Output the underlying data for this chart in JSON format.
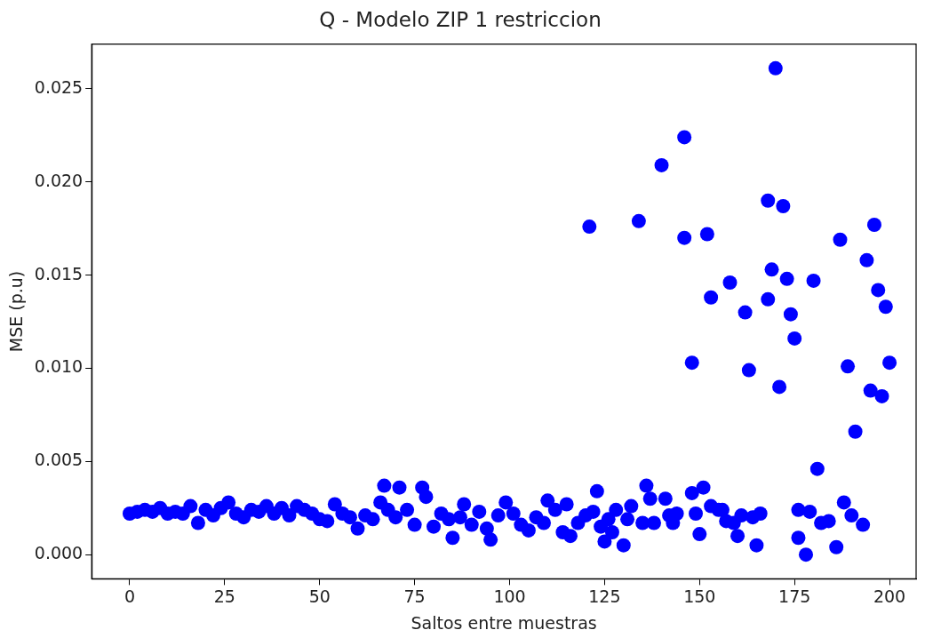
{
  "chart_data": {
    "type": "scatter",
    "title": "Q - Modelo ZIP 1 restriccion",
    "xlabel": "Saltos entre muestras",
    "ylabel": "MSE (p.u)",
    "xlim": [
      -10,
      207
    ],
    "ylim": [
      -0.0013,
      0.0274
    ],
    "xticks": [
      0,
      25,
      50,
      75,
      100,
      125,
      150,
      175,
      200
    ],
    "yticks": [
      {
        "value": 0,
        "label": "0.000"
      },
      {
        "value": 0.005,
        "label": "0.005"
      },
      {
        "value": 0.01,
        "label": "0.010"
      },
      {
        "value": 0.015,
        "label": "0.015"
      },
      {
        "value": 0.02,
        "label": "0.020"
      },
      {
        "value": 0.025,
        "label": "0.025"
      }
    ],
    "grid": false,
    "legend": false,
    "marker": "circle",
    "series": [
      {
        "color": "#0000ff",
        "x": [
          0,
          2,
          4,
          6,
          8,
          10,
          12,
          14,
          16,
          18,
          20,
          22,
          24,
          26,
          28,
          30,
          32,
          34,
          36,
          38,
          40,
          42,
          44,
          46,
          48,
          50,
          52,
          54,
          56,
          58,
          60,
          62,
          64,
          66,
          67,
          68,
          70,
          71,
          73,
          75,
          77,
          78,
          80,
          82,
          84,
          85,
          87,
          88,
          90,
          92,
          94,
          95,
          97,
          99,
          101,
          103,
          105,
          107,
          109,
          110,
          112,
          114,
          115,
          116,
          118,
          120,
          121,
          122,
          123,
          124,
          125,
          126,
          127,
          128,
          130,
          131,
          132,
          134,
          135,
          136,
          137,
          138,
          140,
          141,
          142,
          143,
          144,
          146,
          146,
          148,
          148,
          149,
          150,
          151,
          152,
          153,
          153,
          155,
          156,
          157,
          158,
          159,
          160,
          161,
          162,
          163,
          164,
          165,
          166,
          168,
          168,
          169,
          170,
          171,
          172,
          173,
          174,
          175,
          176,
          176,
          178,
          179,
          180,
          181,
          182,
          184,
          186,
          187,
          188,
          189,
          190,
          191,
          193,
          194,
          195,
          196,
          197,
          198,
          199,
          200
        ],
        "values": [
          0.0022,
          0.0023,
          0.0024,
          0.0023,
          0.0025,
          0.0022,
          0.0023,
          0.0022,
          0.0026,
          0.0017,
          0.0024,
          0.0021,
          0.0025,
          0.0028,
          0.0022,
          0.002,
          0.0024,
          0.0023,
          0.0026,
          0.0022,
          0.0025,
          0.0021,
          0.0026,
          0.0024,
          0.0022,
          0.0019,
          0.0018,
          0.0027,
          0.0022,
          0.002,
          0.0014,
          0.0021,
          0.0019,
          0.0028,
          0.0037,
          0.0024,
          0.002,
          0.0036,
          0.0024,
          0.0016,
          0.0036,
          0.0031,
          0.0015,
          0.0022,
          0.0019,
          0.0009,
          0.002,
          0.0027,
          0.0016,
          0.0023,
          0.0014,
          0.0008,
          0.0021,
          0.0028,
          0.0022,
          0.0016,
          0.0013,
          0.002,
          0.0017,
          0.0029,
          0.0024,
          0.0012,
          0.0027,
          0.001,
          0.0017,
          0.0021,
          0.0176,
          0.0023,
          0.0034,
          0.0015,
          0.0007,
          0.0019,
          0.0012,
          0.0024,
          0.0005,
          0.0019,
          0.0026,
          0.0179,
          0.0017,
          0.0037,
          0.003,
          0.0017,
          0.0209,
          0.003,
          0.0021,
          0.0017,
          0.0022,
          0.0224,
          0.017,
          0.0033,
          0.0103,
          0.0022,
          0.0011,
          0.0036,
          0.0172,
          0.0026,
          0.0138,
          0.0024,
          0.0024,
          0.0018,
          0.0146,
          0.0017,
          0.001,
          0.0021,
          0.013,
          0.0099,
          0.002,
          0.0005,
          0.0022,
          0.019,
          0.0137,
          0.0153,
          0.0261,
          0.009,
          0.0187,
          0.0148,
          0.0129,
          0.0116,
          0.0009,
          0.0024,
          0.0,
          0.0023,
          0.0147,
          0.0046,
          0.0017,
          0.0018,
          0.0004,
          0.0169,
          0.0028,
          0.0101,
          0.0021,
          0.0066,
          0.0016,
          0.0158,
          0.0088,
          0.0177,
          0.0142,
          0.0085,
          0.0133,
          0.0103
        ]
      }
    ]
  }
}
